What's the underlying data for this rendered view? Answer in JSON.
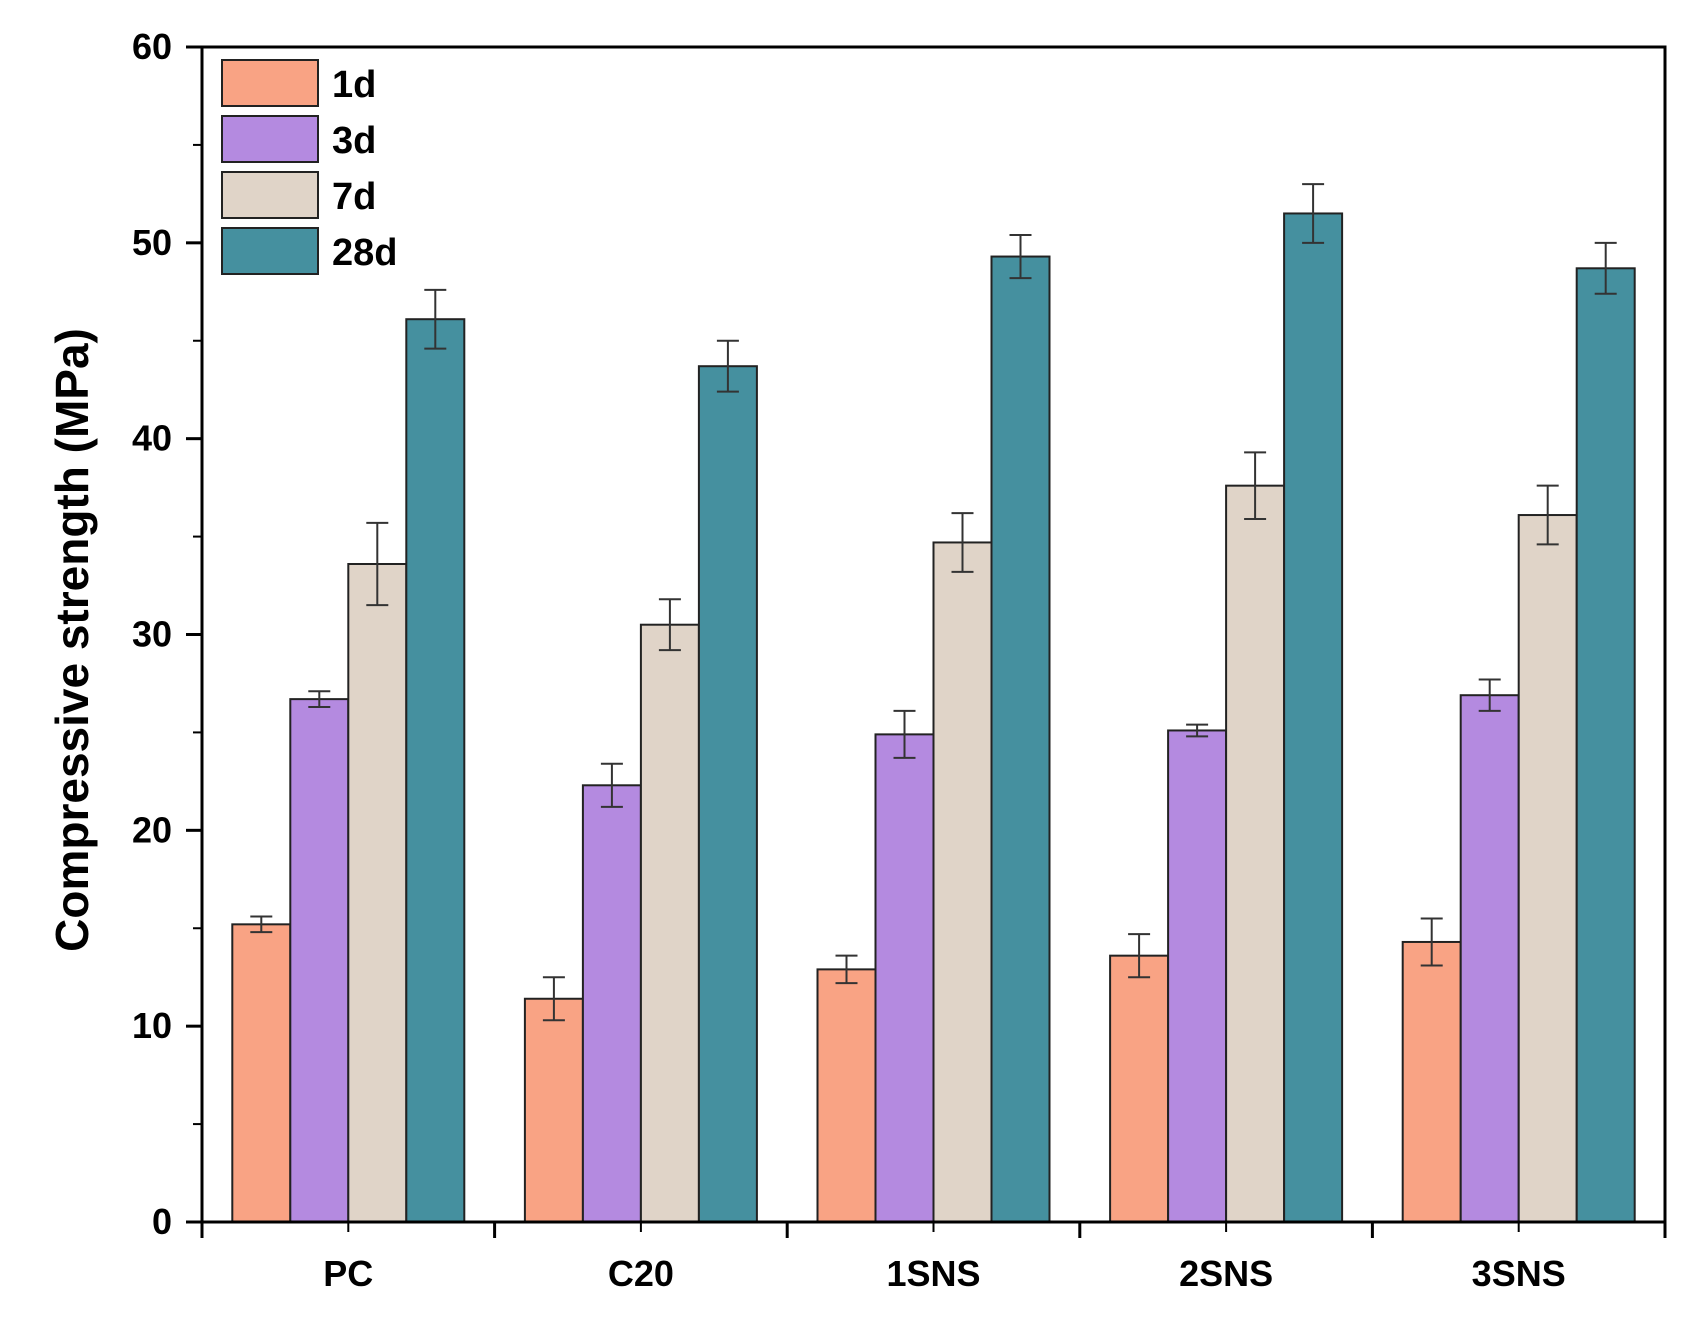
{
  "chart_data": {
    "type": "bar",
    "title": "",
    "xlabel": "",
    "ylabel": "Compressive strength (MPa)",
    "ylim": [
      0,
      60
    ],
    "yticks": [
      0,
      10,
      20,
      30,
      40,
      50,
      60
    ],
    "grid": false,
    "legend_position": "top-left",
    "categories": [
      "PC",
      "C20",
      "1SNS",
      "2SNS",
      "3SNS"
    ],
    "series": [
      {
        "name": "1d",
        "color": "#F9A384",
        "values": [
          15.2,
          11.4,
          12.9,
          13.6,
          14.3
        ],
        "errors": [
          0.4,
          1.1,
          0.7,
          1.1,
          1.2
        ]
      },
      {
        "name": "3d",
        "color": "#B48AE0",
        "values": [
          26.7,
          22.3,
          24.9,
          25.1,
          26.9
        ],
        "errors": [
          0.4,
          1.1,
          1.2,
          0.3,
          0.8
        ]
      },
      {
        "name": "7d",
        "color": "#E0D4C8",
        "values": [
          33.6,
          30.5,
          34.7,
          37.6,
          36.1
        ],
        "errors": [
          2.1,
          1.3,
          1.5,
          1.7,
          1.5
        ]
      },
      {
        "name": "28d",
        "color": "#45909F",
        "values": [
          46.1,
          43.7,
          49.3,
          51.5,
          48.7
        ],
        "errors": [
          1.5,
          1.3,
          1.1,
          1.5,
          1.3
        ]
      }
    ]
  }
}
